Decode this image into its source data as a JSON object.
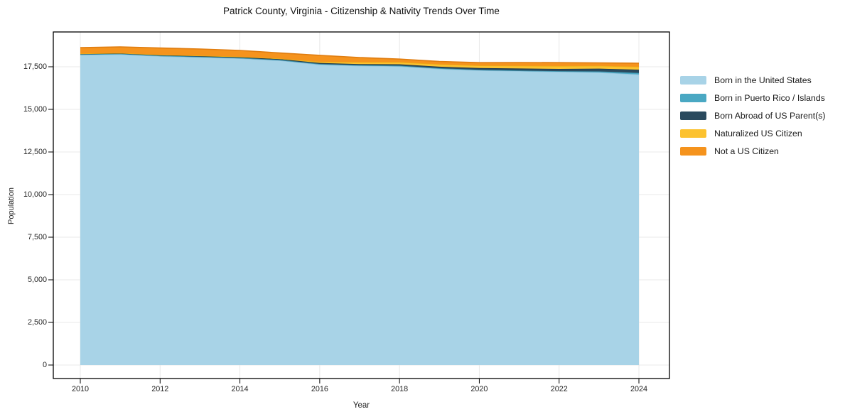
{
  "title": "Patrick County, Virginia - Citizenship & Nativity Trends Over Time",
  "axes": {
    "x_label": "Year",
    "y_label": "Population",
    "x_ticks": [
      {
        "value": 2010,
        "label": "2010"
      },
      {
        "value": 2012,
        "label": "2012"
      },
      {
        "value": 2014,
        "label": "2014"
      },
      {
        "value": 2016,
        "label": "2016"
      },
      {
        "value": 2018,
        "label": "2018"
      },
      {
        "value": 2020,
        "label": "2020"
      },
      {
        "value": 2022,
        "label": "2022"
      },
      {
        "value": 2024,
        "label": "2024"
      }
    ],
    "y_ticks": [
      {
        "value": 0,
        "label": "0"
      },
      {
        "value": 2500,
        "label": "2,500"
      },
      {
        "value": 5000,
        "label": "5,000"
      },
      {
        "value": 7500,
        "label": "7,500"
      },
      {
        "value": 10000,
        "label": "10,000"
      },
      {
        "value": 12500,
        "label": "12,500"
      },
      {
        "value": 15000,
        "label": "15,000"
      },
      {
        "value": 17500,
        "label": "17,500"
      }
    ]
  },
  "colors": {
    "grid": "#e8e8e8",
    "plot_border": "#000000",
    "tick": "#000000",
    "background": "#ffffff"
  },
  "chart_data": {
    "type": "area",
    "stacked": true,
    "title": "Patrick County, Virginia - Citizenship & Nativity Trends Over Time",
    "xlabel": "Year",
    "ylabel": "Population",
    "grid": true,
    "legend_position": "right",
    "xlim": [
      2009.3,
      2024.8
    ],
    "ylim": [
      0,
      19500
    ],
    "x": [
      2010,
      2011,
      2012,
      2013,
      2014,
      2015,
      2016,
      2017,
      2018,
      2019,
      2020,
      2021,
      2022,
      2023,
      2024
    ],
    "series": [
      {
        "name": "Born in the United States",
        "color": "#a8d3e7",
        "edge_color": "#8fc3dc",
        "values": [
          18200,
          18230,
          18120,
          18060,
          17990,
          17870,
          17630,
          17560,
          17530,
          17380,
          17290,
          17250,
          17210,
          17170,
          17050
        ]
      },
      {
        "name": "Born in Puerto Rico / Islands",
        "color": "#4aa8c3",
        "edge_color": "#3d93ad",
        "values": [
          35,
          35,
          35,
          35,
          35,
          35,
          35,
          35,
          35,
          35,
          35,
          35,
          35,
          60,
          90
        ]
      },
      {
        "name": "Born Abroad of US Parent(s)",
        "color": "#2a4a5e",
        "edge_color": "#223c4d",
        "values": [
          30,
          30,
          35,
          40,
          45,
          50,
          60,
          65,
          80,
          90,
          100,
          115,
          130,
          160,
          190
        ]
      },
      {
        "name": "Naturalized US Citizen",
        "color": "#fcc22f",
        "edge_color": "#edac15",
        "values": [
          10,
          15,
          15,
          20,
          20,
          30,
          70,
          110,
          130,
          140,
          150,
          160,
          170,
          170,
          170
        ]
      },
      {
        "name": "Not a US Citizen",
        "color": "#f5931d",
        "edge_color": "#e07d10",
        "values": [
          345,
          355,
          395,
          385,
          370,
          325,
          375,
          270,
          175,
          165,
          165,
          190,
          195,
          170,
          210
        ]
      }
    ]
  }
}
